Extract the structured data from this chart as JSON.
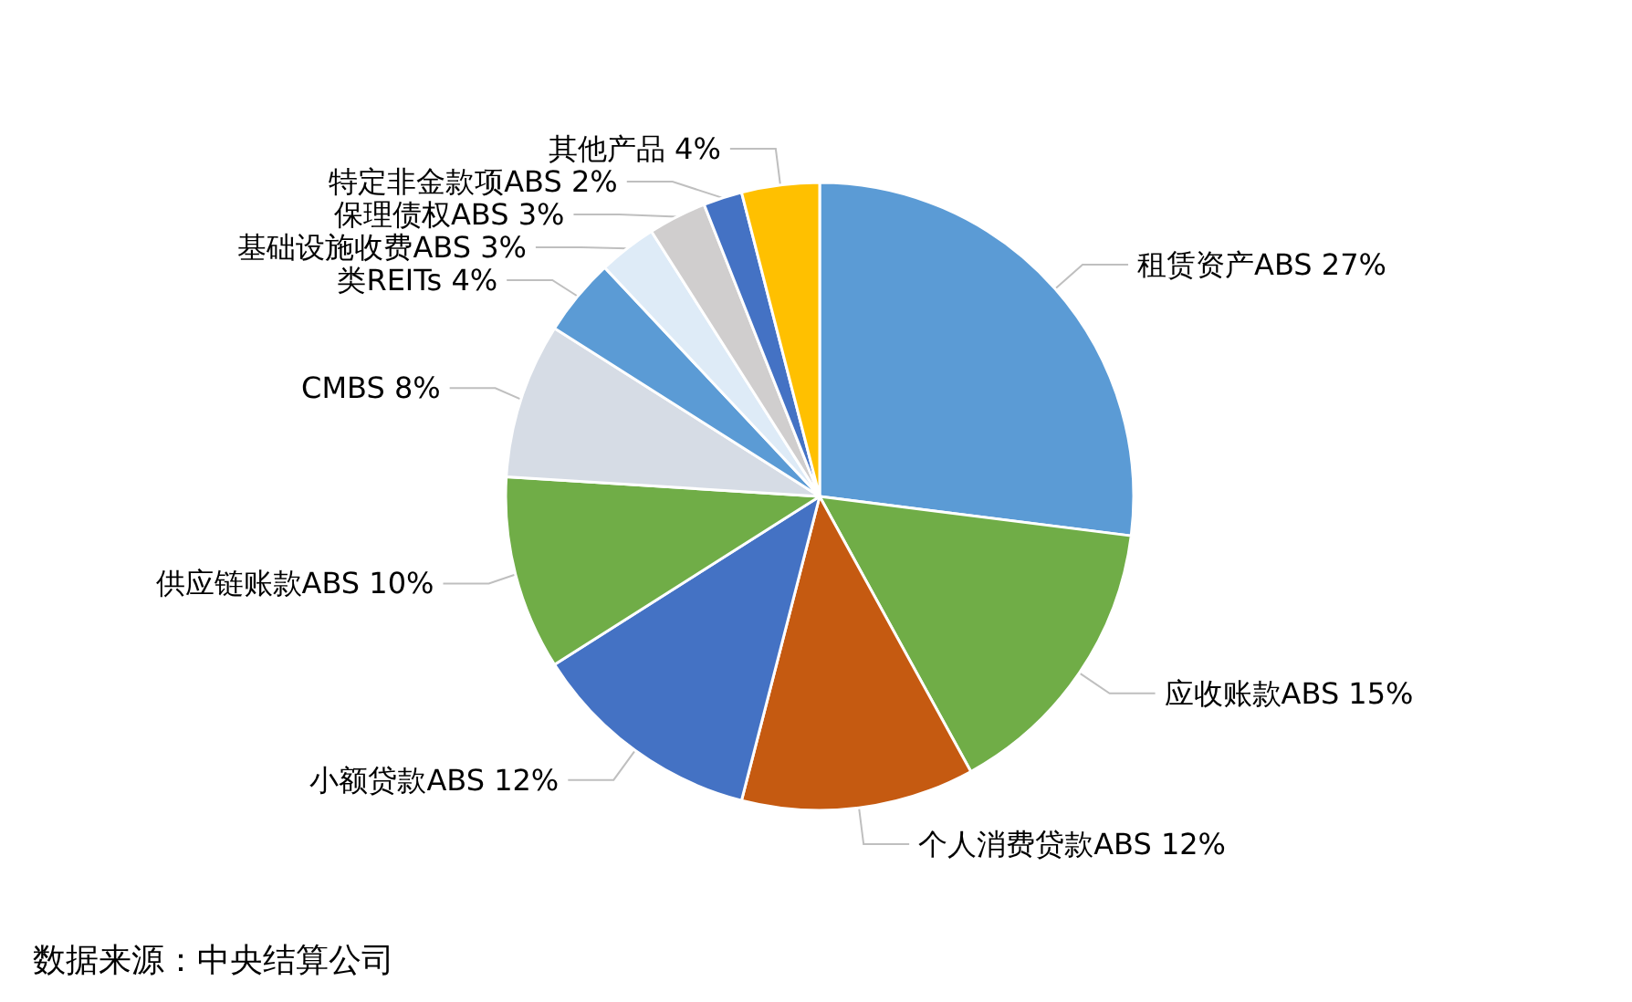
{
  "chart_data": {
    "type": "pie",
    "categories": [
      "租赁资产ABS",
      "应收账款ABS",
      "个人消费贷款ABS",
      "小额贷款ABS",
      "供应链账款ABS",
      "CMBS",
      "类REITs",
      "基础设施收费ABS",
      "保理债权ABS",
      "特定非金款项ABS",
      "其他产品"
    ],
    "values": [
      27,
      15,
      12,
      12,
      10,
      8,
      4,
      3,
      3,
      2,
      4
    ],
    "value_labels": [
      "27%",
      "15%",
      "12%",
      "12%",
      "10%",
      "8%",
      "4%",
      "3%",
      "3%",
      "2%",
      "4%"
    ],
    "colors": [
      "#5b9bd5",
      "#70ad47",
      "#c55a11",
      "#4472c4",
      "#70ad47",
      "#d6dce5",
      "#5b9bd5",
      "#deebf7",
      "#d0cece",
      "#4472c4",
      "#ffc000"
    ],
    "annotations": [
      "数据来源：中央结算公司"
    ],
    "legend": false
  }
}
